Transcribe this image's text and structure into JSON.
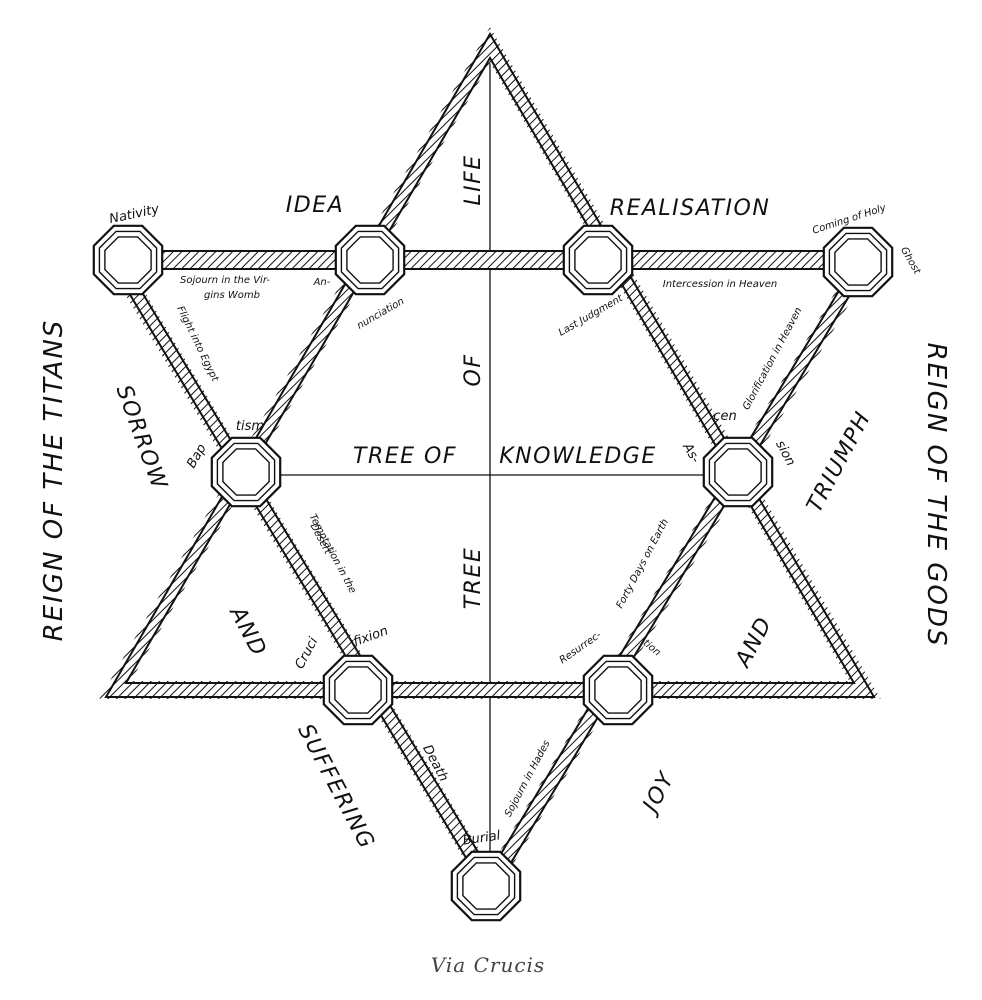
{
  "caption": "Via Crucis",
  "outer_labels": {
    "left": "REIGN OF THE TITANS",
    "right": "REIGN OF THE GODS"
  },
  "region_labels": {
    "idea": "IDEA",
    "realisation": "REALISATION",
    "sorrow": "SORROW",
    "and_left": "AND",
    "suffering": "SUFFERING",
    "triumph": "TRIUMPH",
    "and_right": "AND",
    "joy": "JOY"
  },
  "axis_labels": {
    "life": "LIFE",
    "of": "OF",
    "tree": "TREE",
    "tree_of_knowledge_1": "TREE OF",
    "tree_of_knowledge_2": "KNOWLEDGE"
  },
  "station_labels": {
    "nativity": "Nativity",
    "sojourn_wb_1": "Sojourn in the Vir-",
    "sojourn_wb_2": "gins Womb",
    "annunciation_1": "An-",
    "annunciation_2": "nunciation",
    "flight": "Flight into Egypt",
    "baptism_1": "Bap",
    "baptism_2": "tism",
    "temptation_1": "Temptation in the",
    "temptation_2": "Desert",
    "cruci": "Cruci",
    "fixion": "fixion",
    "death": "Death",
    "burial": "Burial",
    "sojourn_hades": "Sojourn in Hades",
    "resurrec": "Resurrec-",
    "tion": "tion",
    "forty_days": "Forty Days on Earth",
    "as": "As-",
    "cen": "cen",
    "sion": "sion",
    "glorification": "Glorification in Heaven",
    "coming_1": "Coming of Holy",
    "coming_2": "Ghost",
    "intercession": "Intercession in Heaven",
    "last_judgment": "Last Judgment"
  }
}
